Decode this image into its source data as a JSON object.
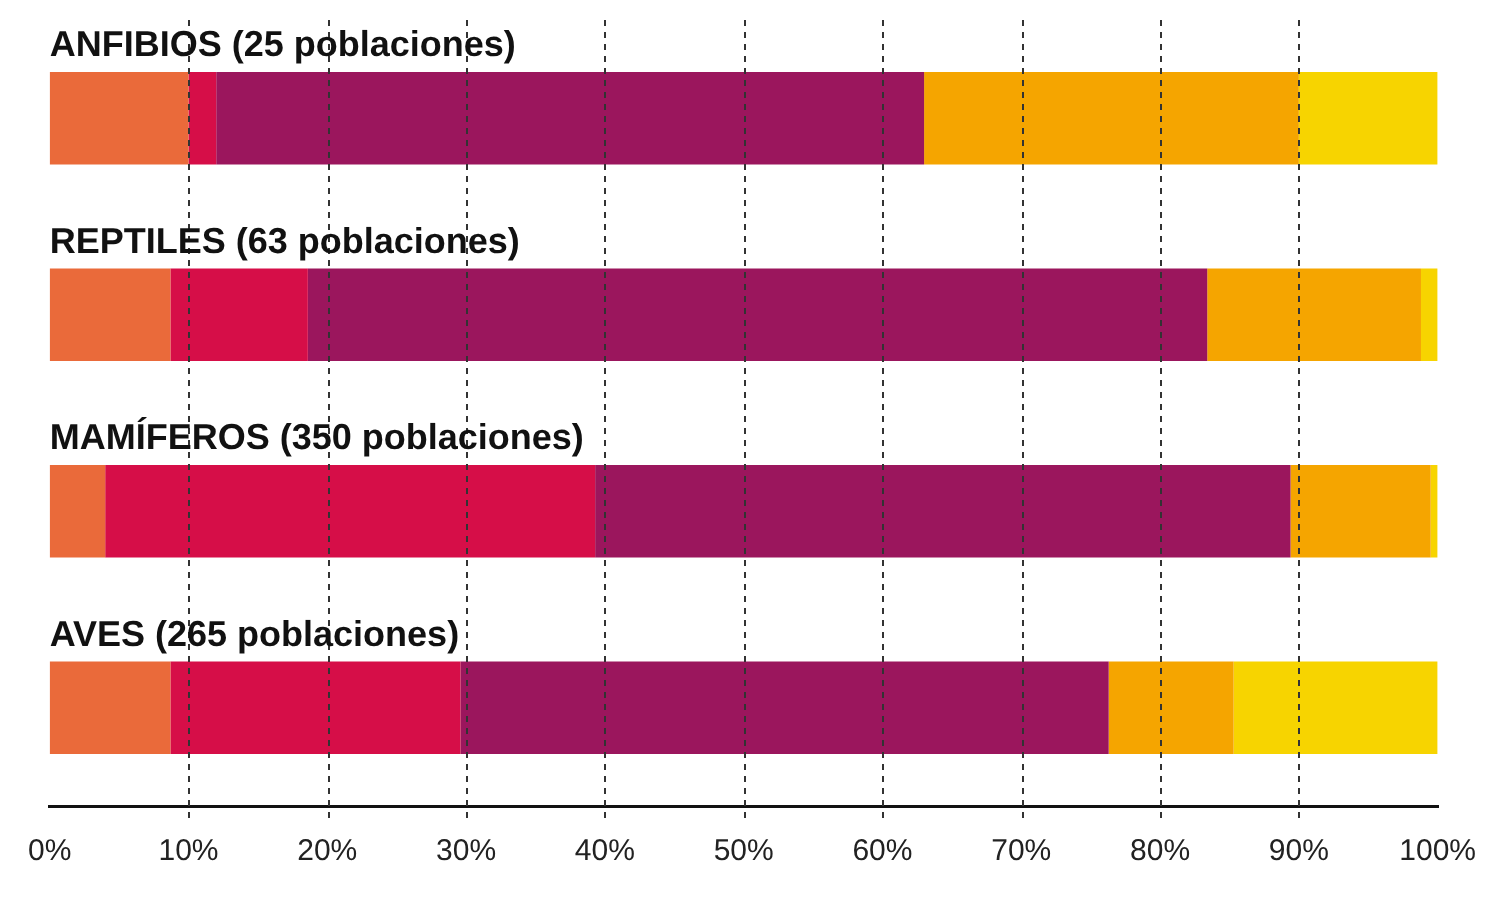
{
  "chart_data": {
    "type": "bar",
    "orientation": "horizontal",
    "stacked": true,
    "categories": [
      "ANFIBIOS (25 poblaciones)",
      "REPTILES (63 poblaciones)",
      "MAMÍFEROS (350 poblaciones)",
      "AVES (265 poblaciones)"
    ],
    "series": [
      {
        "color": "#ea6a3a",
        "values": [
          10,
          8.7,
          4,
          8.7
        ]
      },
      {
        "color": "#d60e48",
        "values": [
          2,
          9.9,
          35.3,
          20.9
        ]
      },
      {
        "color": "#9b165d",
        "values": [
          51,
          64.8,
          50.1,
          46.7
        ]
      },
      {
        "color": "#f5a500",
        "values": [
          27,
          15.4,
          10.1,
          9
        ]
      },
      {
        "color": "#f7d400",
        "values": [
          10,
          1.2,
          0.5,
          14.7
        ]
      }
    ],
    "xlim": [
      0,
      100
    ],
    "xticks": [
      {
        "value": 0,
        "label": "0%"
      },
      {
        "value": 10,
        "label": "10%"
      },
      {
        "value": 20,
        "label": "20%"
      },
      {
        "value": 30,
        "label": "30%"
      },
      {
        "value": 40,
        "label": "40%"
      },
      {
        "value": 50,
        "label": "50%"
      },
      {
        "value": 60,
        "label": "60%"
      },
      {
        "value": 70,
        "label": "70%"
      },
      {
        "value": 80,
        "label": "80%"
      },
      {
        "value": 90,
        "label": "90%"
      },
      {
        "value": 100,
        "label": "100%"
      }
    ],
    "grid": "x",
    "legend": false
  }
}
